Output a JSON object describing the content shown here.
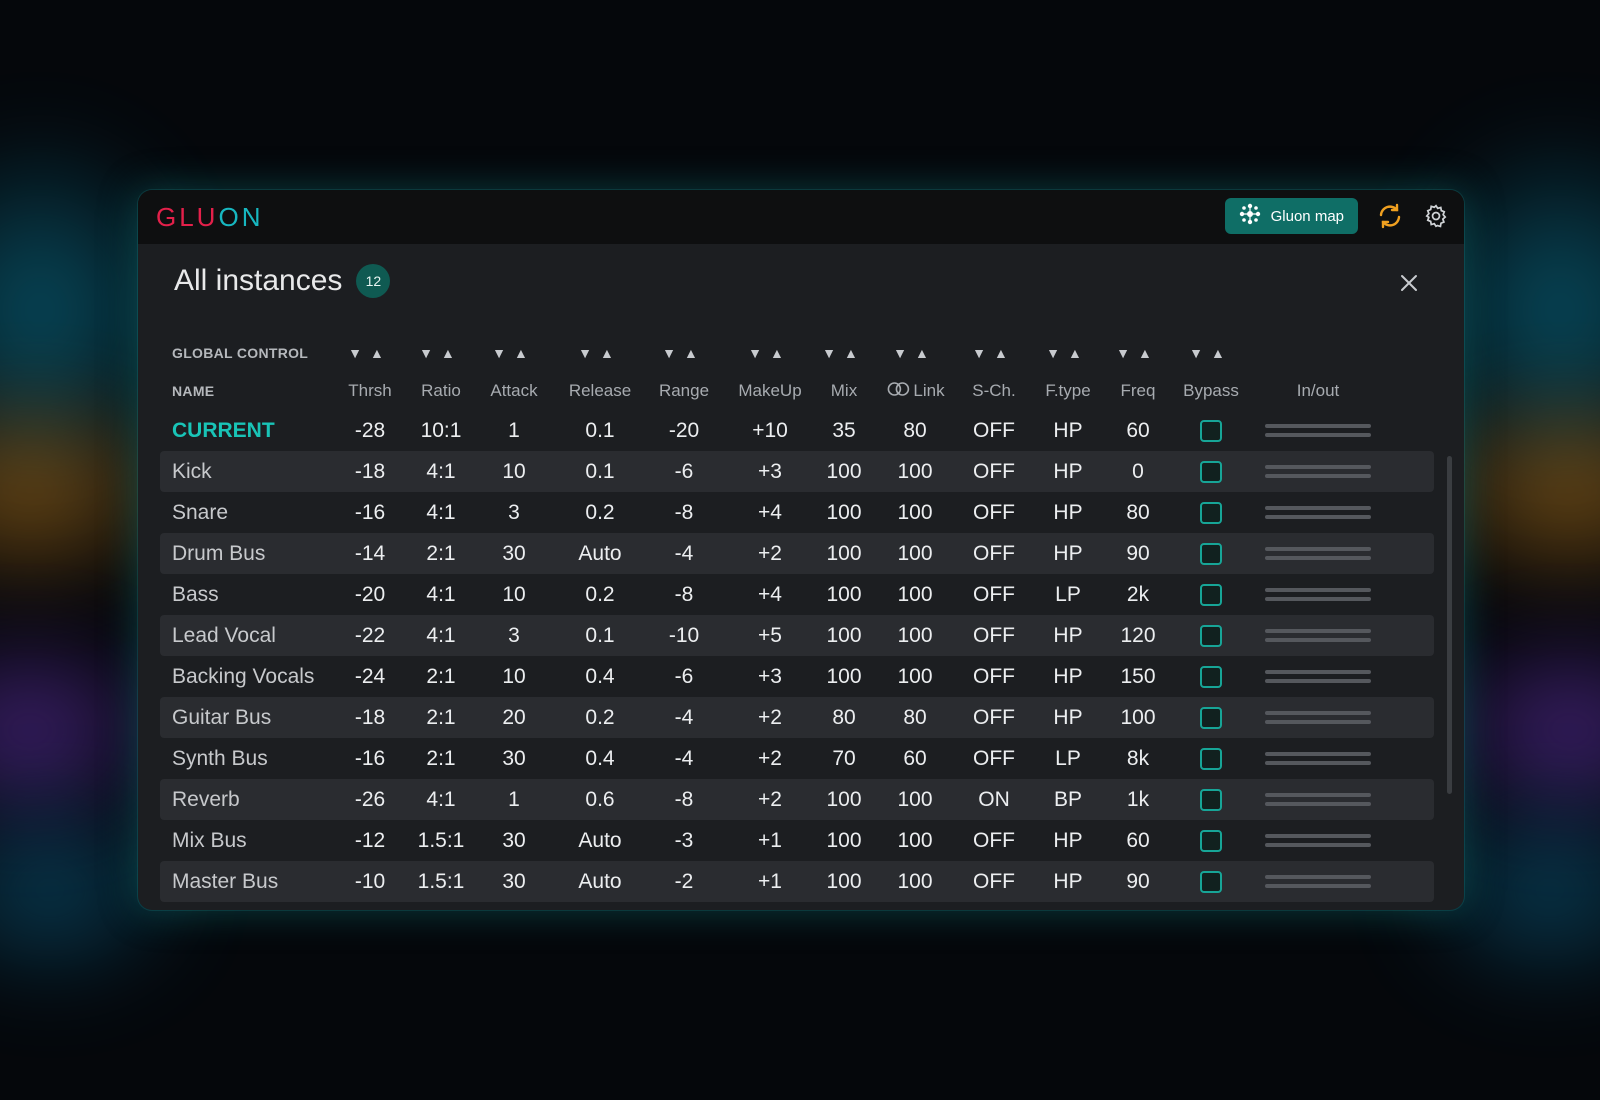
{
  "app": {
    "logo_left": "GLU",
    "logo_right": "ON",
    "gluon_map_label": "Gluon map"
  },
  "panel": {
    "title": "All instances",
    "count": "12"
  },
  "global_control": {
    "label": "GLOBAL CONTROL",
    "arrows": "▼▲"
  },
  "columns": {
    "name": "NAME",
    "thrsh": "Thrsh",
    "ratio": "Ratio",
    "attack": "Attack",
    "release": "Release",
    "range": "Range",
    "makeup": "MakeUp",
    "mix": "Mix",
    "link": "Link",
    "sch": "S-Ch.",
    "ftype": "F.type",
    "freq": "Freq",
    "bypass": "Bypass",
    "inout": "In/out"
  },
  "rows": [
    {
      "name": "CURRENT",
      "thrsh": "-28",
      "ratio": "10:1",
      "attack": "1",
      "release": "0.1",
      "range": "-20",
      "makeup": "+10",
      "mix": "35",
      "link": "80",
      "sch": "OFF",
      "ftype": "HP",
      "freq": "60"
    },
    {
      "name": "Kick",
      "thrsh": "-18",
      "ratio": "4:1",
      "attack": "10",
      "release": "0.1",
      "range": "-6",
      "makeup": "+3",
      "mix": "100",
      "link": "100",
      "sch": "OFF",
      "ftype": "HP",
      "freq": "0"
    },
    {
      "name": "Snare",
      "thrsh": "-16",
      "ratio": "4:1",
      "attack": "3",
      "release": "0.2",
      "range": "-8",
      "makeup": "+4",
      "mix": "100",
      "link": "100",
      "sch": "OFF",
      "ftype": "HP",
      "freq": "80"
    },
    {
      "name": "Drum Bus",
      "thrsh": "-14",
      "ratio": "2:1",
      "attack": "30",
      "release": "Auto",
      "range": "-4",
      "makeup": "+2",
      "mix": "100",
      "link": "100",
      "sch": "OFF",
      "ftype": "HP",
      "freq": "90"
    },
    {
      "name": "Bass",
      "thrsh": "-20",
      "ratio": "4:1",
      "attack": "10",
      "release": "0.2",
      "range": "-8",
      "makeup": "+4",
      "mix": "100",
      "link": "100",
      "sch": "OFF",
      "ftype": "LP",
      "freq": "2k"
    },
    {
      "name": "Lead Vocal",
      "thrsh": "-22",
      "ratio": "4:1",
      "attack": "3",
      "release": "0.1",
      "range": "-10",
      "makeup": "+5",
      "mix": "100",
      "link": "100",
      "sch": "OFF",
      "ftype": "HP",
      "freq": "120"
    },
    {
      "name": "Backing Vocals",
      "thrsh": "-24",
      "ratio": "2:1",
      "attack": "10",
      "release": "0.4",
      "range": "-6",
      "makeup": "+3",
      "mix": "100",
      "link": "100",
      "sch": "OFF",
      "ftype": "HP",
      "freq": "150"
    },
    {
      "name": "Guitar Bus",
      "thrsh": "-18",
      "ratio": "2:1",
      "attack": "20",
      "release": "0.2",
      "range": "-4",
      "makeup": "+2",
      "mix": "80",
      "link": "80",
      "sch": "OFF",
      "ftype": "HP",
      "freq": "100"
    },
    {
      "name": "Synth Bus",
      "thrsh": "-16",
      "ratio": "2:1",
      "attack": "30",
      "release": "0.4",
      "range": "-4",
      "makeup": "+2",
      "mix": "70",
      "link": "60",
      "sch": "OFF",
      "ftype": "LP",
      "freq": "8k"
    },
    {
      "name": "Reverb",
      "thrsh": "-26",
      "ratio": "4:1",
      "attack": "1",
      "release": "0.6",
      "range": "-8",
      "makeup": "+2",
      "mix": "100",
      "link": "100",
      "sch": "ON",
      "ftype": "BP",
      "freq": "1k"
    },
    {
      "name": "Mix Bus",
      "thrsh": "-12",
      "ratio": "1.5:1",
      "attack": "30",
      "release": "Auto",
      "range": "-3",
      "makeup": "+1",
      "mix": "100",
      "link": "100",
      "sch": "OFF",
      "ftype": "HP",
      "freq": "60"
    },
    {
      "name": "Master Bus",
      "thrsh": "-10",
      "ratio": "1.5:1",
      "attack": "30",
      "release": "Auto",
      "range": "-2",
      "makeup": "+1",
      "mix": "100",
      "link": "100",
      "sch": "OFF",
      "ftype": "HP",
      "freq": "90"
    }
  ],
  "colors": {
    "accent": "#19c4b7",
    "brand_red": "#e3204a",
    "brand_teal": "#17b7c0",
    "button_bg": "#0f6e66",
    "sync_icon": "#f0a020"
  },
  "icons": {
    "map_button": "gluon-map-icon",
    "sync": "sync-icon",
    "settings": "gear-icon",
    "close": "close-icon",
    "link": "link-rings-icon"
  }
}
